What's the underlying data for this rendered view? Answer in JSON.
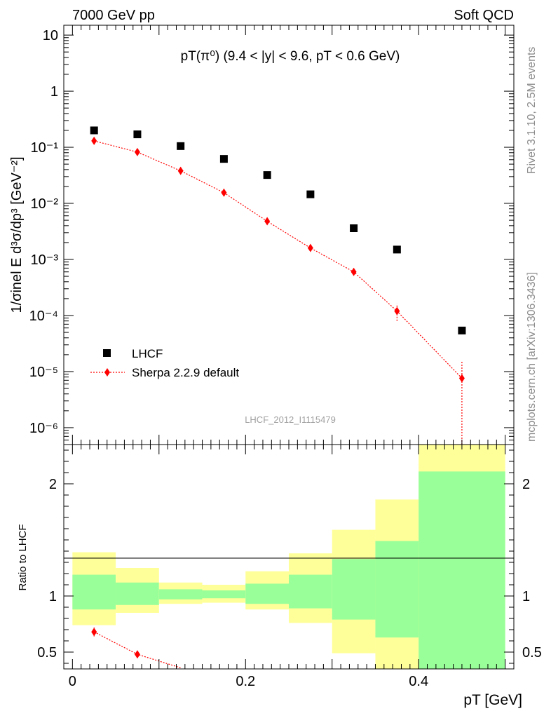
{
  "header": {
    "left": "7000 GeV pp",
    "right": "Soft QCD"
  },
  "side_labels": {
    "rivet": "Rivet 3.1.10,  2.5M events",
    "mcplots": "mcplots.cern.ch [arXiv:1306.3436]"
  },
  "watermark": "LHCF_2012_I1115479",
  "colors": {
    "data": "#000000",
    "mc": "#ff0000",
    "band_inner": "#99ff99",
    "band_outer": "#ffff99"
  },
  "chart_data": [
    {
      "type": "scatter",
      "title": "pT(π⁰) (9.4 < |y| < 9.6, pT < 0.6 GeV)",
      "ylabel": "1/σinel E d³σ/dp³ [GeV⁻²]",
      "xlabel": "pT [GeV]",
      "yscale": "log",
      "xlim": [
        -0.01,
        0.51
      ],
      "ylim": [
        5e-07,
        15
      ],
      "y_tick_labels": [
        "10⁻⁶",
        "10⁻⁵",
        "10⁻⁴",
        "10⁻³",
        "10⁻²",
        "10⁻¹",
        "1",
        "10"
      ],
      "legend_position": "bottom-left",
      "series": [
        {
          "name": "LHCF",
          "marker": "square",
          "x": [
            0.025,
            0.075,
            0.125,
            0.175,
            0.225,
            0.275,
            0.325,
            0.375,
            0.45
          ],
          "y": [
            0.2,
            0.17,
            0.105,
            0.062,
            0.032,
            0.0145,
            0.0036,
            0.0015,
            5.4e-05
          ]
        },
        {
          "name": "Sherpa 2.2.9 default",
          "marker": "diamond",
          "line": "dotted",
          "x": [
            0.025,
            0.075,
            0.125,
            0.175,
            0.225,
            0.275,
            0.325,
            0.375,
            0.45
          ],
          "y": [
            0.13,
            0.082,
            0.038,
            0.0155,
            0.0048,
            0.0016,
            0.0006,
            0.00012,
            7.6e-06
          ],
          "y_err_low": [
            0.008,
            0.004,
            0.002,
            0.0008,
            0.0003,
            0.0001,
            8e-05,
            4e-05,
            7.6e-06
          ],
          "y_err_high": [
            0.008,
            0.004,
            0.002,
            0.0008,
            0.0003,
            0.0001,
            8e-05,
            4e-05,
            7.4e-06
          ]
        }
      ]
    },
    {
      "type": "area",
      "ylabel": "Ratio to LHCF",
      "xlabel": "pT [GeV]",
      "xlim": [
        -0.01,
        0.51
      ],
      "ylim": [
        0.35,
        2.35
      ],
      "x_tick_labels": [
        "0",
        "0.2",
        "0.4"
      ],
      "x_ticks": [
        0,
        0.2,
        0.4
      ],
      "y_tick_labels": [
        "0.5",
        "1",
        "2"
      ],
      "y_ticks": [
        0.5,
        1,
        2
      ],
      "reference_line": 1,
      "bins": [
        {
          "x_low": 0.0,
          "x_high": 0.05,
          "inner": [
            0.88,
            1.19
          ],
          "outer": [
            0.74,
            1.39
          ]
        },
        {
          "x_low": 0.05,
          "x_high": 0.1,
          "inner": [
            0.92,
            1.12
          ],
          "outer": [
            0.85,
            1.25
          ]
        },
        {
          "x_low": 0.1,
          "x_high": 0.15,
          "inner": [
            0.97,
            1.06
          ],
          "outer": [
            0.93,
            1.12
          ]
        },
        {
          "x_low": 0.15,
          "x_high": 0.2,
          "inner": [
            0.98,
            1.05
          ],
          "outer": [
            0.94,
            1.1
          ]
        },
        {
          "x_low": 0.2,
          "x_high": 0.25,
          "inner": [
            0.93,
            1.11
          ],
          "outer": [
            0.88,
            1.22
          ]
        },
        {
          "x_low": 0.25,
          "x_high": 0.3,
          "inner": [
            0.89,
            1.19
          ],
          "outer": [
            0.76,
            1.38
          ]
        },
        {
          "x_low": 0.3,
          "x_high": 0.35,
          "inner": [
            0.79,
            1.33
          ],
          "outer": [
            0.49,
            1.59
          ]
        },
        {
          "x_low": 0.35,
          "x_high": 0.4,
          "inner": [
            0.63,
            1.49
          ],
          "outer": [
            0.35,
            1.86
          ]
        },
        {
          "x_low": 0.4,
          "x_high": 0.5,
          "inner": [
            0.35,
            2.11
          ],
          "outer": [
            0.35,
            2.35
          ]
        }
      ],
      "series": [
        {
          "name": "Sherpa 2.2.9 default",
          "x": [
            0.025,
            0.075,
            0.125
          ],
          "y": [
            0.68,
            0.48,
            0.36
          ],
          "y_err_low": [
            0.04,
            0.02,
            0.0
          ],
          "y_err_high": [
            0.04,
            0.02,
            0.0
          ]
        }
      ]
    }
  ]
}
